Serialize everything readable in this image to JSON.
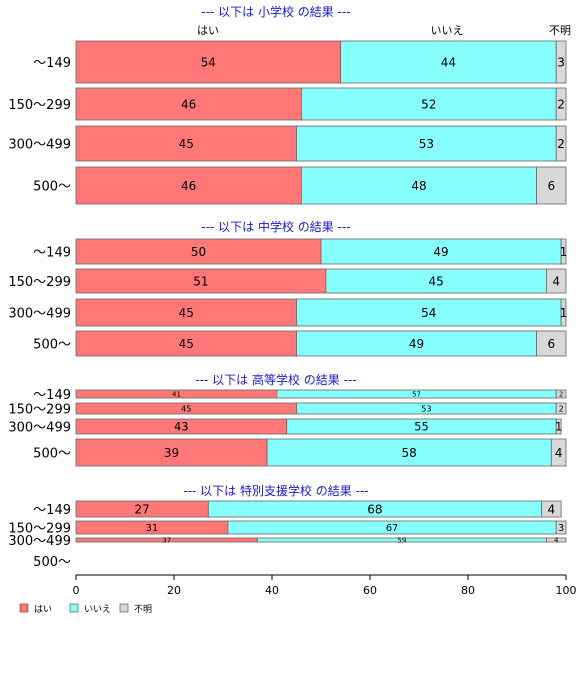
{
  "colors": {
    "yes": "#ff7777",
    "no": "#88ffff",
    "unknown": "#d8d8d8",
    "title": "#1a1ad4",
    "stroke": "#666666"
  },
  "column_headers": {
    "yes": "はい",
    "no": "いいえ",
    "unknown": "不明"
  },
  "legend": [
    {
      "key": "yes",
      "label": "はい"
    },
    {
      "key": "no",
      "label": "いいえ"
    },
    {
      "key": "unknown",
      "label": "不明"
    }
  ],
  "chart_data": {
    "type": "bar",
    "orientation": "horizontal",
    "stacked": true,
    "xlim": [
      0,
      100
    ],
    "xticks": [
      0,
      20,
      40,
      60,
      80,
      100
    ],
    "legend_position": "bottom-left",
    "panels": [
      {
        "title": "--- 以下は 小学校 の結果 ---",
        "categories": [
          "〜149",
          "150〜299",
          "300〜499",
          "500〜"
        ],
        "series": [
          {
            "name": "はい",
            "values": [
              54,
              46,
              45,
              46
            ]
          },
          {
            "name": "いいえ",
            "values": [
              44,
              52,
              53,
              48
            ]
          },
          {
            "name": "不明",
            "values": [
              3,
              2,
              2,
              6
            ]
          }
        ]
      },
      {
        "title": "--- 以下は 中学校 の結果 ---",
        "categories": [
          "〜149",
          "150〜299",
          "300〜499",
          "500〜"
        ],
        "series": [
          {
            "name": "はい",
            "values": [
              50,
              51,
              45,
              45
            ]
          },
          {
            "name": "いいえ",
            "values": [
              49,
              45,
              54,
              49
            ]
          },
          {
            "name": "不明",
            "values": [
              1,
              4,
              1,
              6
            ]
          }
        ]
      },
      {
        "title": "--- 以下は 高等学校 の結果 ---",
        "categories": [
          "〜149",
          "150〜299",
          "300〜499",
          "500〜"
        ],
        "series": [
          {
            "name": "はい",
            "values": [
              41,
              45,
              43,
              39
            ]
          },
          {
            "name": "いいえ",
            "values": [
              57,
              53,
              55,
              58
            ]
          },
          {
            "name": "不明",
            "values": [
              2,
              2,
              1,
              4
            ]
          }
        ]
      },
      {
        "title": "--- 以下は 特別支援学校 の結果 ---",
        "categories": [
          "〜149",
          "150〜299",
          "300〜499",
          "500〜"
        ],
        "series": [
          {
            "name": "はい",
            "values": [
              27,
              31,
              37,
              null
            ]
          },
          {
            "name": "いいえ",
            "values": [
              68,
              67,
              59,
              null
            ]
          },
          {
            "name": "不明",
            "values": [
              4,
              3,
              4,
              null
            ]
          }
        ]
      }
    ]
  }
}
